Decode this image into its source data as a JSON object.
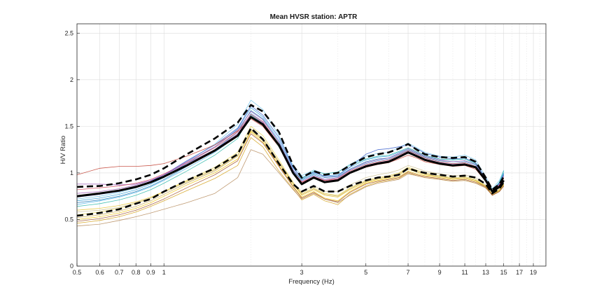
{
  "chart_data": {
    "type": "line",
    "title": "Mean HVSR station: APTR",
    "xlabel": "Frequency (Hz)",
    "ylabel": "H/V Ratio",
    "xscale": "log",
    "xlim": [
      0.5,
      21
    ],
    "ylim": [
      0,
      2.6
    ],
    "xticks": [
      0.5,
      0.6,
      0.7,
      0.8,
      0.9,
      1,
      3,
      5,
      7,
      9,
      11,
      13,
      15,
      17,
      19
    ],
    "xtick_labels": [
      "0.5",
      "0.6",
      "0.7",
      "0.8",
      "0.9",
      "1",
      "3",
      "5",
      "7",
      "9",
      "11",
      "13",
      "15",
      "17",
      "19"
    ],
    "yticks": [
      0,
      0.5,
      1,
      1.5,
      2,
      2.5
    ],
    "ytick_labels": [
      "0",
      "0.5",
      "1",
      "1.5",
      "2",
      "2.5"
    ],
    "grid": true,
    "x": [
      0.5,
      0.6,
      0.7,
      0.8,
      0.9,
      1.0,
      1.2,
      1.5,
      1.8,
      2.0,
      2.2,
      2.5,
      2.8,
      3.0,
      3.3,
      3.6,
      4.0,
      4.4,
      5.0,
      5.5,
      6.0,
      6.5,
      7.0,
      7.5,
      8.0,
      9.0,
      10.0,
      11.0,
      12.0,
      13.0,
      13.7,
      14.5,
      15.0
    ],
    "series": [
      {
        "style": "mean",
        "color": "#000000",
        "values": [
          0.75,
          0.78,
          0.81,
          0.85,
          0.9,
          0.96,
          1.08,
          1.24,
          1.4,
          1.6,
          1.52,
          1.3,
          1.0,
          0.88,
          0.95,
          0.9,
          0.92,
          1.0,
          1.07,
          1.1,
          1.12,
          1.17,
          1.22,
          1.18,
          1.14,
          1.1,
          1.08,
          1.09,
          1.06,
          0.92,
          0.8,
          0.85,
          0.92
        ]
      },
      {
        "style": "mean-plus-std",
        "color": "#000000",
        "values": [
          0.85,
          0.86,
          0.89,
          0.93,
          0.98,
          1.05,
          1.2,
          1.37,
          1.54,
          1.73,
          1.66,
          1.44,
          1.08,
          0.95,
          1.02,
          0.98,
          1.0,
          1.08,
          1.17,
          1.2,
          1.22,
          1.26,
          1.31,
          1.25,
          1.2,
          1.17,
          1.16,
          1.17,
          1.12,
          0.95,
          0.82,
          0.88,
          0.96
        ]
      },
      {
        "style": "mean-minus-std",
        "color": "#000000",
        "values": [
          0.54,
          0.57,
          0.61,
          0.67,
          0.72,
          0.8,
          0.92,
          1.05,
          1.2,
          1.48,
          1.36,
          1.1,
          0.88,
          0.8,
          0.86,
          0.8,
          0.8,
          0.86,
          0.92,
          0.95,
          0.96,
          0.98,
          1.05,
          1.02,
          1.0,
          0.98,
          0.96,
          0.97,
          0.95,
          0.88,
          0.78,
          0.83,
          0.9
        ]
      },
      {
        "style": "window",
        "color": "#2f9fd8",
        "values": [
          0.7,
          0.73,
          0.77,
          0.82,
          0.88,
          0.95,
          1.1,
          1.28,
          1.47,
          1.7,
          1.6,
          1.35,
          1.05,
          0.95,
          1.0,
          0.97,
          0.98,
          1.06,
          1.14,
          1.17,
          1.18,
          1.22,
          1.26,
          1.22,
          1.18,
          1.15,
          1.14,
          1.15,
          1.1,
          0.94,
          0.81,
          0.9,
          1.0
        ]
      },
      {
        "style": "window",
        "color": "#4db3e6",
        "values": [
          0.66,
          0.7,
          0.74,
          0.79,
          0.85,
          0.92,
          1.05,
          1.22,
          1.4,
          1.64,
          1.55,
          1.3,
          1.02,
          0.92,
          0.98,
          0.93,
          0.95,
          1.03,
          1.1,
          1.13,
          1.15,
          1.19,
          1.24,
          1.2,
          1.16,
          1.12,
          1.1,
          1.12,
          1.08,
          0.93,
          0.8,
          0.88,
          0.97
        ]
      },
      {
        "style": "window",
        "color": "#6fc3ea",
        "values": [
          0.72,
          0.75,
          0.79,
          0.84,
          0.9,
          0.97,
          1.12,
          1.31,
          1.52,
          1.78,
          1.68,
          1.4,
          1.08,
          0.97,
          1.03,
          0.99,
          1.01,
          1.09,
          1.18,
          1.21,
          1.22,
          1.27,
          1.32,
          1.27,
          1.22,
          1.18,
          1.17,
          1.19,
          1.14,
          0.96,
          0.83,
          0.92,
          1.03
        ]
      },
      {
        "style": "window",
        "color": "#1f77b4",
        "values": [
          0.68,
          0.71,
          0.75,
          0.8,
          0.86,
          0.93,
          1.07,
          1.25,
          1.44,
          1.67,
          1.58,
          1.33,
          1.03,
          0.93,
          0.99,
          0.95,
          0.96,
          1.04,
          1.12,
          1.15,
          1.16,
          1.2,
          1.25,
          1.21,
          1.17,
          1.13,
          1.12,
          1.13,
          1.09,
          0.93,
          0.8,
          0.89,
          0.98
        ]
      },
      {
        "style": "window",
        "color": "#3a5fcd",
        "values": [
          0.74,
          0.77,
          0.8,
          0.85,
          0.91,
          0.98,
          1.13,
          1.3,
          1.48,
          1.72,
          1.62,
          1.38,
          1.06,
          0.94,
          1.01,
          0.96,
          0.97,
          1.06,
          1.2,
          1.25,
          1.26,
          1.28,
          1.3,
          1.26,
          1.21,
          1.17,
          1.15,
          1.16,
          1.11,
          0.94,
          0.81,
          0.89,
          0.99
        ]
      },
      {
        "style": "window",
        "color": "#c0392b",
        "values": [
          0.98,
          1.05,
          1.07,
          1.07,
          1.08,
          1.1,
          1.18,
          1.3,
          1.45,
          1.58,
          1.5,
          1.28,
          1.0,
          0.9,
          0.95,
          0.92,
          0.93,
          1.0,
          1.06,
          1.09,
          1.11,
          1.15,
          1.19,
          1.16,
          1.12,
          1.09,
          1.07,
          1.08,
          1.04,
          0.91,
          0.79,
          0.86,
          0.94
        ]
      },
      {
        "style": "window",
        "color": "#8e44ad",
        "values": [
          0.88,
          0.88,
          0.87,
          0.88,
          0.92,
          0.98,
          1.1,
          1.25,
          1.42,
          1.62,
          1.54,
          1.3,
          1.0,
          0.89,
          0.96,
          0.91,
          0.93,
          1.01,
          1.08,
          1.11,
          1.13,
          1.18,
          1.23,
          1.19,
          1.15,
          1.11,
          1.09,
          1.1,
          1.06,
          0.92,
          0.8,
          0.87,
          0.95
        ]
      },
      {
        "style": "window",
        "color": "#d1495b",
        "values": [
          0.82,
          0.84,
          0.86,
          0.89,
          0.93,
          0.99,
          1.11,
          1.27,
          1.44,
          1.63,
          1.55,
          1.31,
          1.01,
          0.9,
          0.96,
          0.92,
          0.94,
          1.02,
          1.09,
          1.12,
          1.14,
          1.19,
          1.24,
          1.2,
          1.16,
          1.12,
          1.1,
          1.11,
          1.07,
          0.92,
          0.8,
          0.87,
          0.95
        ]
      },
      {
        "style": "window",
        "color": "#2ab7a9",
        "values": [
          0.64,
          0.67,
          0.71,
          0.76,
          0.82,
          0.89,
          1.02,
          1.19,
          1.37,
          1.62,
          1.53,
          1.28,
          1.0,
          0.94,
          1.02,
          0.99,
          1.01,
          1.08,
          1.15,
          1.18,
          1.19,
          1.23,
          1.27,
          1.23,
          1.19,
          1.15,
          1.14,
          1.15,
          1.1,
          0.93,
          0.8,
          0.9,
          1.02
        ]
      },
      {
        "style": "window",
        "color": "#9b59b6",
        "values": [
          0.78,
          0.8,
          0.83,
          0.87,
          0.92,
          0.98,
          1.12,
          1.28,
          1.46,
          1.66,
          1.57,
          1.33,
          1.03,
          0.91,
          0.97,
          0.93,
          0.95,
          1.03,
          1.11,
          1.14,
          1.16,
          1.21,
          1.26,
          1.22,
          1.18,
          1.14,
          1.12,
          1.13,
          1.09,
          0.93,
          0.8,
          0.88,
          0.97
        ]
      },
      {
        "style": "window",
        "color": "#e8d44d",
        "values": [
          0.55,
          0.58,
          0.62,
          0.67,
          0.73,
          0.8,
          0.92,
          1.06,
          1.22,
          1.5,
          1.4,
          1.14,
          0.9,
          0.78,
          0.84,
          0.78,
          0.76,
          0.84,
          0.92,
          0.95,
          0.97,
          1.0,
          1.06,
          1.03,
          1.0,
          0.97,
          0.95,
          0.96,
          0.93,
          0.86,
          0.77,
          0.82,
          0.88
        ]
      },
      {
        "style": "window",
        "color": "#f1c40f",
        "values": [
          0.5,
          0.53,
          0.57,
          0.62,
          0.68,
          0.75,
          0.87,
          1.0,
          1.15,
          1.44,
          1.33,
          1.08,
          0.86,
          0.74,
          0.8,
          0.73,
          0.7,
          0.8,
          0.89,
          0.92,
          0.94,
          0.96,
          1.02,
          0.99,
          0.97,
          0.95,
          0.93,
          0.94,
          0.91,
          0.85,
          0.76,
          0.81,
          0.87
        ]
      },
      {
        "style": "window",
        "color": "#e6c229",
        "values": [
          0.6,
          0.62,
          0.65,
          0.69,
          0.74,
          0.8,
          0.91,
          1.04,
          1.19,
          1.45,
          1.35,
          1.1,
          0.88,
          0.76,
          0.82,
          0.76,
          0.74,
          0.82,
          0.9,
          0.93,
          0.95,
          0.98,
          1.04,
          1.01,
          0.98,
          0.96,
          0.94,
          0.95,
          0.92,
          0.86,
          0.77,
          0.82,
          0.88
        ]
      },
      {
        "style": "window",
        "color": "#d4a017",
        "values": [
          0.46,
          0.49,
          0.53,
          0.58,
          0.64,
          0.7,
          0.81,
          0.94,
          1.08,
          1.38,
          1.28,
          1.02,
          0.83,
          0.71,
          0.77,
          0.7,
          0.66,
          0.77,
          0.86,
          0.9,
          0.92,
          0.94,
          1.0,
          0.97,
          0.95,
          0.93,
          0.91,
          0.92,
          0.89,
          0.84,
          0.76,
          0.8,
          0.86
        ]
      },
      {
        "style": "window",
        "color": "#c8a951",
        "values": [
          0.52,
          0.55,
          0.59,
          0.64,
          0.7,
          0.77,
          0.89,
          1.02,
          1.18,
          1.47,
          1.37,
          1.12,
          0.89,
          0.77,
          0.83,
          0.77,
          0.75,
          0.83,
          0.91,
          0.94,
          0.96,
          0.99,
          1.05,
          1.02,
          0.99,
          0.96,
          0.94,
          0.95,
          0.92,
          0.85,
          0.77,
          0.81,
          0.87
        ]
      },
      {
        "style": "window",
        "color": "#b5895a",
        "values": [
          0.43,
          0.45,
          0.49,
          0.53,
          0.57,
          0.61,
          0.68,
          0.78,
          0.95,
          1.25,
          1.2,
          1.0,
          0.82,
          0.72,
          0.78,
          0.72,
          0.68,
          0.76,
          0.85,
          0.89,
          0.91,
          0.93,
          0.99,
          0.97,
          0.95,
          0.93,
          0.91,
          0.92,
          0.89,
          0.84,
          0.76,
          0.8,
          0.86
        ]
      },
      {
        "style": "window",
        "color": "#a0522d",
        "values": [
          0.48,
          0.51,
          0.55,
          0.6,
          0.66,
          0.72,
          0.84,
          0.98,
          1.13,
          1.42,
          1.32,
          1.07,
          0.85,
          0.73,
          0.79,
          0.72,
          0.69,
          0.79,
          0.88,
          0.91,
          0.93,
          0.95,
          1.01,
          0.98,
          0.96,
          0.94,
          0.92,
          0.93,
          0.9,
          0.85,
          0.76,
          0.8,
          0.86
        ]
      },
      {
        "style": "window",
        "color": "#cdbf8f",
        "values": [
          0.58,
          0.6,
          0.63,
          0.68,
          0.73,
          0.79,
          0.9,
          1.03,
          1.18,
          1.46,
          1.36,
          1.11,
          0.89,
          0.8,
          0.86,
          0.8,
          0.8,
          0.87,
          0.95,
          0.98,
          1.0,
          1.03,
          1.08,
          1.05,
          1.02,
          0.99,
          0.97,
          0.98,
          0.95,
          0.87,
          0.78,
          0.83,
          0.89
        ]
      }
    ]
  }
}
